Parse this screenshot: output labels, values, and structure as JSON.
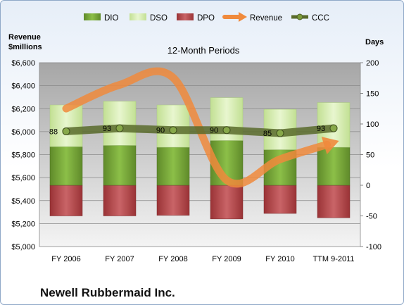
{
  "chart_data": {
    "type": "bar",
    "title": "12-Month Periods",
    "company": "Newell Rubbermaid Inc.",
    "ylabel_left": [
      "Revenue",
      "$millions"
    ],
    "ylabel_right": "Days",
    "categories": [
      "FY 2006",
      "FY 2007",
      "FY 2008",
      "FY 2009",
      "FY 2010",
      "TTM 9-2011"
    ],
    "left_axis": {
      "min": 5000,
      "max": 6600,
      "step": 200,
      "ticks": [
        "$5,000",
        "$5,200",
        "$5,400",
        "$5,600",
        "$5,800",
        "$6,000",
        "$6,200",
        "$6,400",
        "$6,600"
      ]
    },
    "right_axis": {
      "min": -100,
      "max": 200,
      "step": 50,
      "ticks": [
        "-100",
        "-50",
        "0",
        "50",
        "100",
        "150",
        "200"
      ]
    },
    "legend": [
      "DIO",
      "DSO",
      "DPO",
      "Revenue",
      "CCC"
    ],
    "legend_position": "top",
    "colors": {
      "DIO": "#77a33a",
      "DSO": "#d5ebb0",
      "DPO": "#b54a4d",
      "Revenue": "#f08a3c",
      "CCC": "#596b2b"
    },
    "series": [
      {
        "name": "DIO",
        "axis": "right",
        "values": [
          63,
          65,
          62,
          73,
          58,
          62
        ]
      },
      {
        "name": "DSO",
        "axis": "right",
        "values": [
          68,
          72,
          69,
          70,
          66,
          73
        ]
      },
      {
        "name": "DPO",
        "axis": "right",
        "values": [
          -50,
          -50,
          -49,
          -55,
          -46,
          -53
        ]
      },
      {
        "name": "Revenue",
        "axis": "left",
        "values": [
          6201,
          6407,
          6470,
          5578,
          5760,
          5905
        ]
      },
      {
        "name": "CCC",
        "axis": "right",
        "values": [
          88,
          93,
          90,
          90,
          85,
          93
        ],
        "labels": [
          "88",
          "93",
          "90",
          "90",
          "85",
          "93"
        ]
      }
    ]
  }
}
